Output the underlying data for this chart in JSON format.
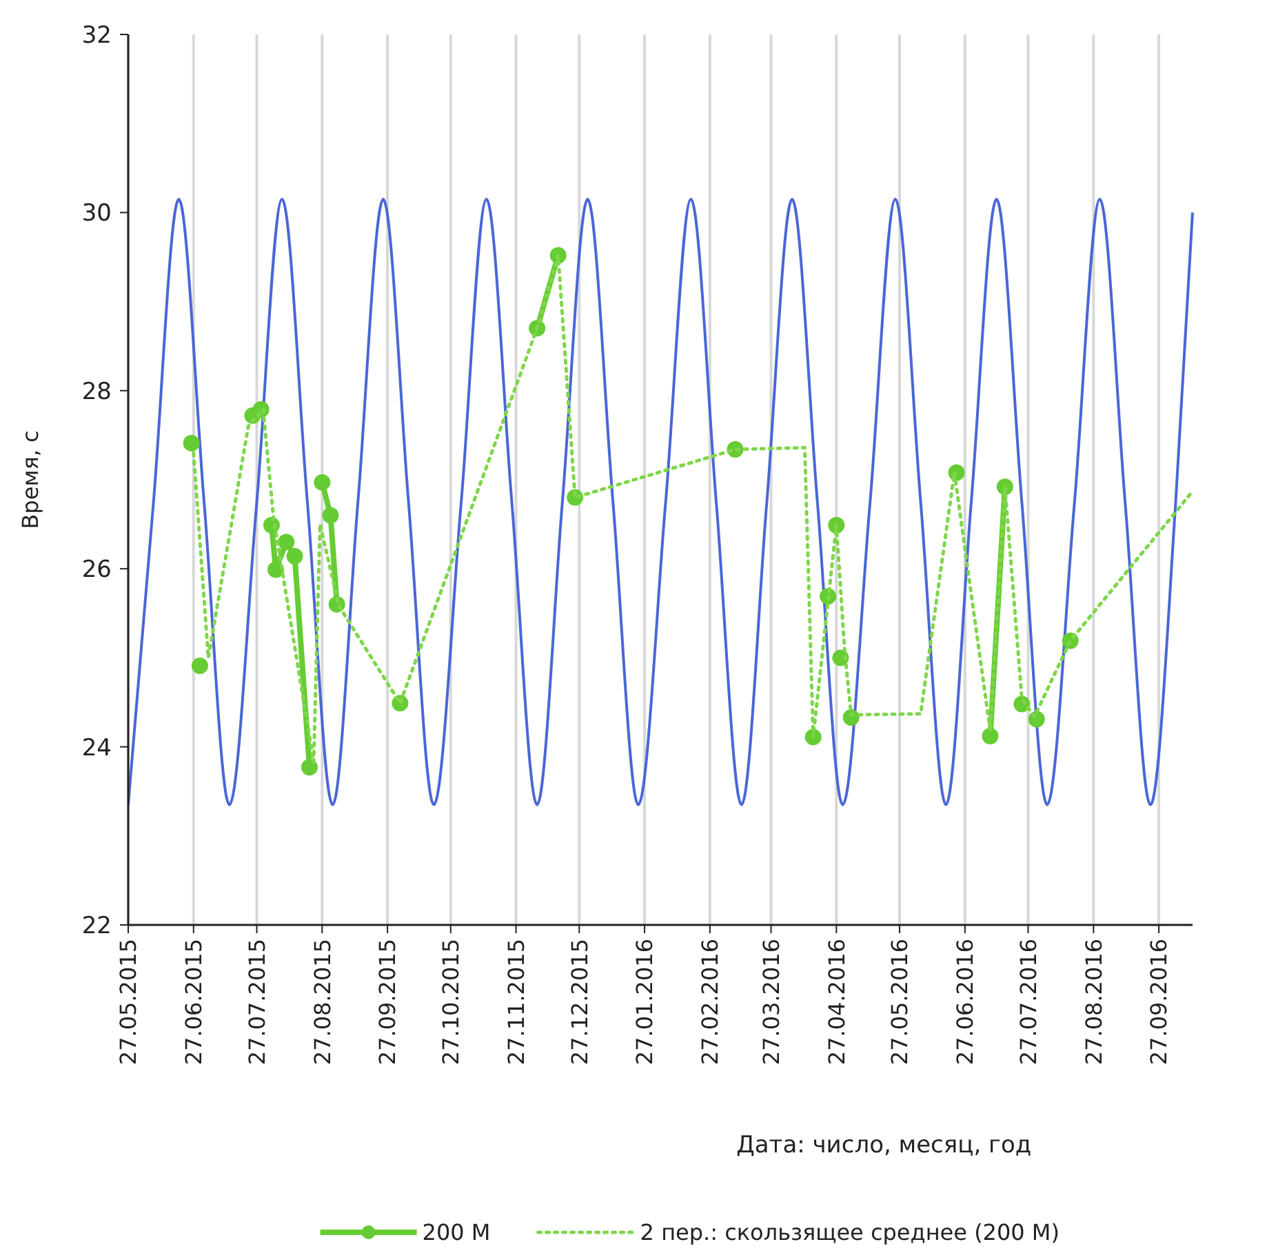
{
  "chart_data": {
    "type": "line",
    "xlabel": "Дата: число, месяц, год",
    "ylabel": "Время, с",
    "xlim": [
      "2015-05-27",
      "2016-10-13"
    ],
    "ylim": [
      22,
      32
    ],
    "yticks": [
      22,
      24,
      26,
      28,
      30,
      32
    ],
    "xticks": [
      {
        "value": "2015-05-27",
        "label": "27.05.2015"
      },
      {
        "value": "2015-06-27",
        "label": "27.06.2015"
      },
      {
        "value": "2015-07-27",
        "label": "27.07.2015"
      },
      {
        "value": "2015-08-27",
        "label": "27.08.2015"
      },
      {
        "value": "2015-09-27",
        "label": "27.09.2015"
      },
      {
        "value": "2015-10-27",
        "label": "27.10.2015"
      },
      {
        "value": "2015-11-27",
        "label": "27.11.2015"
      },
      {
        "value": "2015-12-27",
        "label": "27.12.2015"
      },
      {
        "value": "2016-01-27",
        "label": "27.01.2016"
      },
      {
        "value": "2016-02-27",
        "label": "27.02.2016"
      },
      {
        "value": "2016-03-27",
        "label": "27.03.2016"
      },
      {
        "value": "2016-04-27",
        "label": "27.04.2016"
      },
      {
        "value": "2016-05-27",
        "label": "27.05.2016"
      },
      {
        "value": "2016-06-27",
        "label": "27.06.2016"
      },
      {
        "value": "2016-07-27",
        "label": "27.07.2016"
      },
      {
        "value": "2016-08-27",
        "label": "27.08.2016"
      },
      {
        "value": "2016-09-27",
        "label": "27.09.2016"
      }
    ],
    "grid": "x",
    "legend": "bottom",
    "series": [
      {
        "color": "#4a67d6",
        "marker": "none",
        "line_style": "solid",
        "x": [
          "2015-05-27",
          "2015-06-08",
          "2015-06-20",
          "2015-07-02",
          "2015-07-14",
          "2015-07-27",
          "2015-08-08",
          "2015-08-20",
          "2015-09-01",
          "2015-09-13",
          "2015-09-25",
          "2015-10-07",
          "2015-10-19",
          "2015-11-01",
          "2015-11-13",
          "2015-11-25",
          "2015-12-07",
          "2015-12-19",
          "2015-12-31",
          "2016-01-12",
          "2016-01-24",
          "2016-02-06",
          "2016-02-18",
          "2016-03-01",
          "2016-03-13",
          "2016-03-25",
          "2016-04-06",
          "2016-04-18",
          "2016-04-30",
          "2016-05-13",
          "2016-05-25",
          "2016-06-06",
          "2016-06-18",
          "2016-06-30",
          "2016-07-12",
          "2016-07-24",
          "2016-08-05",
          "2016-08-18",
          "2016-08-30",
          "2016-09-11",
          "2016-09-23",
          "2016-10-05",
          "2016-10-13"
        ],
        "values": [
          23.35,
          26.75,
          30.15,
          26.75,
          23.35,
          26.75,
          30.15,
          26.75,
          23.35,
          26.75,
          30.15,
          26.75,
          23.35,
          26.75,
          30.15,
          26.75,
          23.35,
          26.75,
          30.15,
          26.75,
          23.35,
          26.75,
          30.15,
          26.75,
          23.35,
          26.75,
          30.15,
          26.75,
          23.35,
          26.75,
          30.15,
          26.75,
          23.35,
          26.75,
          30.15,
          26.75,
          23.35,
          26.75,
          30.15,
          26.75,
          23.35,
          26.75,
          30.0
        ]
      },
      {
        "name": "200 М",
        "color": "#66cc33",
        "marker": "circle",
        "line_style": "solid",
        "x": [
          "2015-06-26",
          null,
          "2015-06-30",
          null,
          "2015-07-25",
          "2015-07-29",
          null,
          "2015-08-03",
          "2015-08-05",
          "2015-08-10",
          "2015-08-14",
          "2015-08-21",
          null,
          "2015-08-27",
          "2015-08-31",
          "2015-09-03",
          null,
          "2015-10-03",
          null,
          "2015-12-07",
          "2015-12-17",
          null,
          "2015-12-25",
          null,
          "2016-03-10",
          null,
          "2016-04-16",
          null,
          "2016-04-23",
          null,
          "2016-04-27",
          null,
          "2016-04-29",
          null,
          "2016-05-04",
          null,
          "2016-06-23",
          null,
          "2016-07-09",
          "2016-07-16",
          null,
          "2016-07-24",
          null,
          "2016-07-31",
          null,
          "2016-08-16"
        ],
        "values": [
          27.41,
          null,
          24.91,
          null,
          27.72,
          27.79,
          null,
          26.49,
          25.99,
          26.3,
          26.14,
          23.77,
          null,
          26.97,
          26.6,
          25.6,
          null,
          24.49,
          null,
          28.7,
          29.52,
          null,
          26.8,
          null,
          27.34,
          null,
          24.11,
          null,
          25.69,
          null,
          26.49,
          null,
          25.0,
          null,
          24.33,
          null,
          27.08,
          null,
          24.12,
          26.92,
          null,
          24.48,
          null,
          24.31,
          null,
          25.19
        ]
      },
      {
        "name": "2 пер.: скользящее среднее (200 М)",
        "color": "#7fd64a",
        "marker": "none",
        "line_style": "dotted",
        "x": [
          "2015-06-27",
          "2015-07-04",
          "2015-07-23",
          "2015-07-30",
          "2015-08-04",
          "2015-08-23",
          "2015-08-26",
          "2015-09-04",
          "2015-10-03",
          "2015-12-07",
          "2015-12-17",
          "2015-12-25",
          "2016-03-10",
          "2016-04-12",
          "2016-04-16",
          "2016-04-27",
          "2016-05-01",
          "2016-05-04",
          "2016-06-06",
          "2016-06-22",
          "2016-07-09",
          "2016-07-16",
          "2016-07-24",
          "2016-07-30",
          "2016-08-16",
          "2016-10-13"
        ],
        "values": [
          27.3,
          25.0,
          27.6,
          27.79,
          26.56,
          23.83,
          26.5,
          25.58,
          24.49,
          28.7,
          29.52,
          26.8,
          27.34,
          27.36,
          24.11,
          26.49,
          25.06,
          24.36,
          24.37,
          27.08,
          24.18,
          26.92,
          24.54,
          24.34,
          25.19,
          26.87
        ]
      }
    ]
  }
}
